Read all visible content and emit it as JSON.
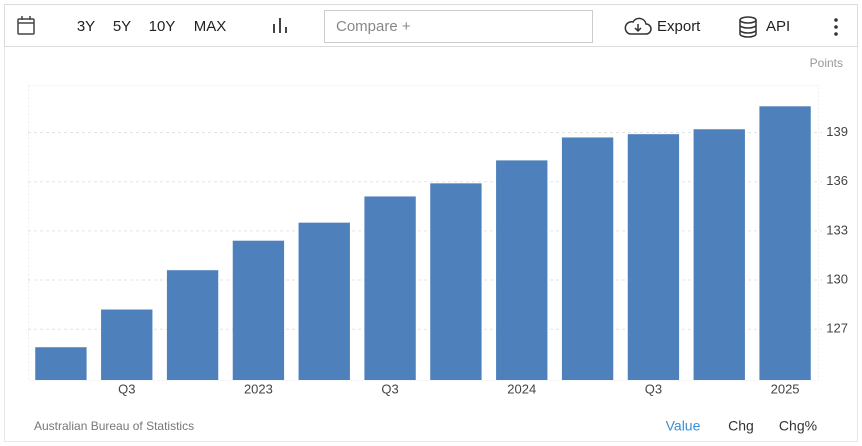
{
  "toolbar": {
    "ranges": [
      "3Y",
      "5Y",
      "10Y",
      "MAX"
    ],
    "compare": "Compare +",
    "export": "Export",
    "api": "API"
  },
  "chart_data": {
    "type": "bar",
    "y_axis_label": "Points",
    "source": "Australian Bureau of Statistics",
    "categories": [
      null,
      "Q3",
      null,
      "2023",
      null,
      "Q3",
      null,
      "2024",
      null,
      "Q3",
      null,
      "2025"
    ],
    "values": [
      125.9,
      128.2,
      130.6,
      132.4,
      133.5,
      135.1,
      135.9,
      137.3,
      138.7,
      138.9,
      139.2,
      140.6
    ],
    "color": "#4e80bb",
    "ylim": [
      123.9,
      141.9
    ],
    "yticks": [
      127,
      130,
      133,
      136,
      139
    ],
    "grid": true
  },
  "footer": {
    "tabs": [
      "Value",
      "Chg",
      "Chg%"
    ]
  }
}
